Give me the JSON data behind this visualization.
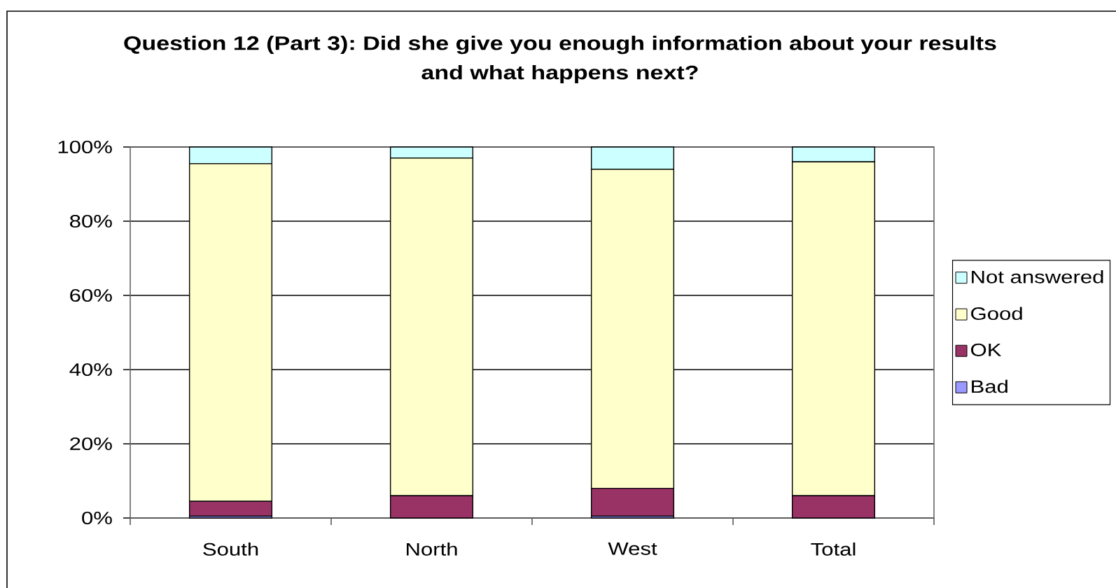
{
  "chart_data": {
    "type": "bar",
    "stacked": true,
    "title": "Question 12 (Part 3): Did she give you enough information about your results and what happens next?",
    "categories": [
      "South",
      "North",
      "West",
      "Total"
    ],
    "series": [
      {
        "name": "Bad",
        "color": "#9999ff",
        "values": [
          0.5,
          0,
          0.5,
          0
        ]
      },
      {
        "name": "OK",
        "color": "#993366",
        "values": [
          4,
          6,
          7.5,
          6
        ]
      },
      {
        "name": "Good",
        "color": "#ffffcc",
        "values": [
          91,
          91,
          86,
          90
        ]
      },
      {
        "name": "Not answered",
        "color": "#ccffff",
        "values": [
          4.5,
          3,
          6,
          4
        ]
      }
    ],
    "ylim": [
      0,
      100
    ],
    "yticks": [
      {
        "value": 0,
        "label": "0%"
      },
      {
        "value": 20,
        "label": "20%"
      },
      {
        "value": 40,
        "label": "40%"
      },
      {
        "value": 60,
        "label": "60%"
      },
      {
        "value": 80,
        "label": "80%"
      },
      {
        "value": 100,
        "label": "100%"
      }
    ],
    "grid": "y",
    "legend": "right"
  }
}
